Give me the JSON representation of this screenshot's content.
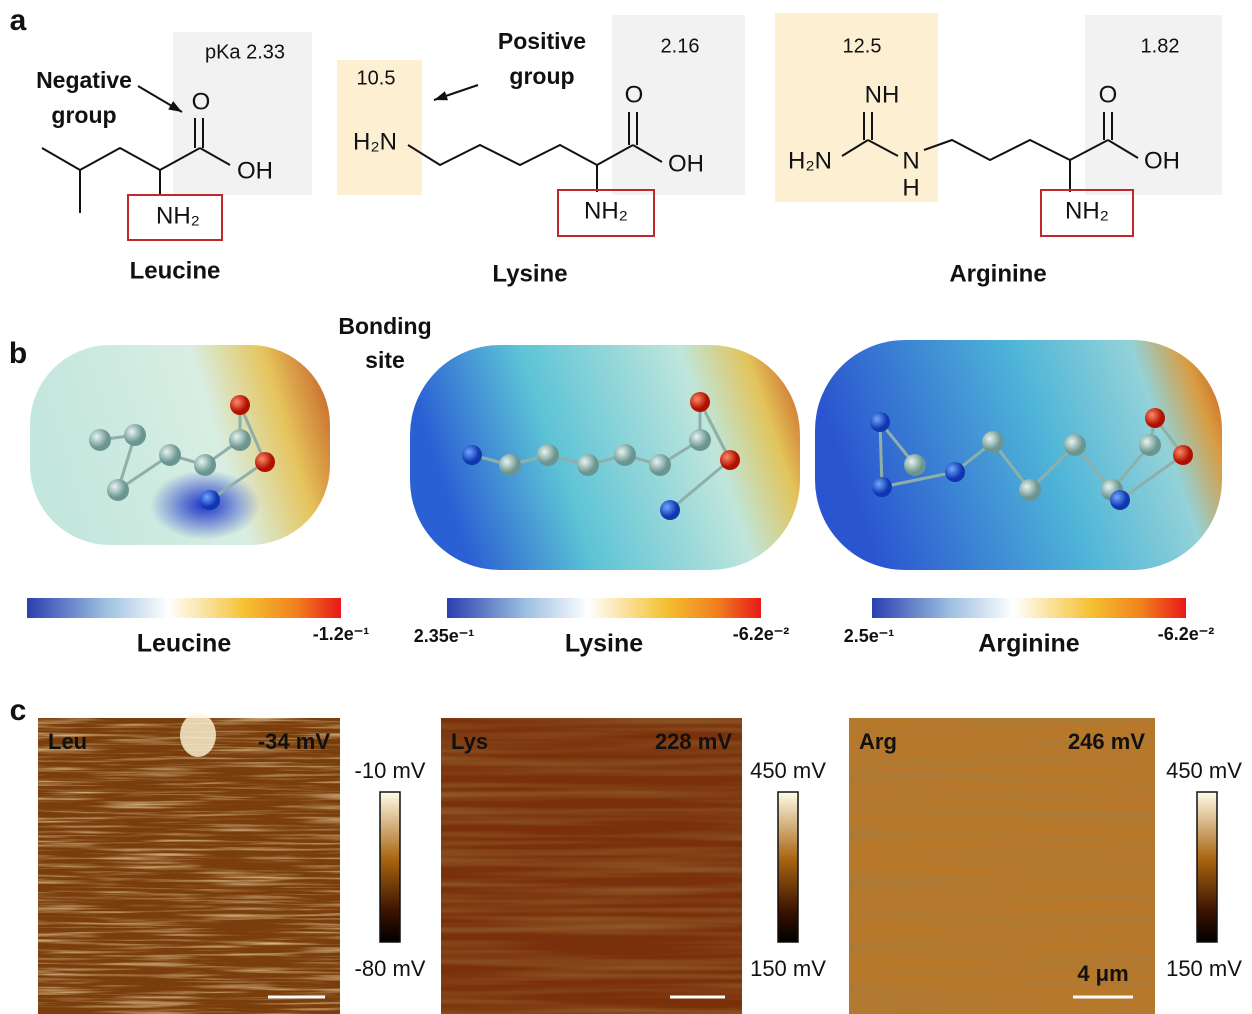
{
  "panel_a": {
    "label": "a",
    "leucine": {
      "name": "Leucine",
      "pka": "pKa 2.33",
      "carbonyl_o": "O",
      "hydroxyl": "OH",
      "amine": "NH₂"
    },
    "lysine": {
      "name": "Lysine",
      "pka_acid": "2.16",
      "pka_side": "10.5",
      "side_amine": "H₂N",
      "carbonyl_o": "O",
      "hydroxyl": "OH",
      "amine": "NH₂"
    },
    "arginine": {
      "name": "Arginine",
      "pka_side": "12.5",
      "pka_acid": "1.82",
      "imine": "NH",
      "side_amine": "H₂N",
      "side_n": "N",
      "side_h": "H",
      "carbonyl_o": "O",
      "hydroxyl": "OH",
      "amine": "NH₂"
    },
    "annotations": {
      "negative": [
        "Negative",
        "group"
      ],
      "positive": [
        "Positive",
        "group"
      ],
      "bonding": [
        "Bonding",
        "site"
      ]
    }
  },
  "panel_b": {
    "label": "b",
    "colorbars": [
      {
        "name": "Leucine",
        "max": "-1.2e⁻¹"
      },
      {
        "name": "Lysine",
        "min": "2.35e⁻¹",
        "max": "-6.2e⁻²"
      },
      {
        "name": "Arginine",
        "min": "2.5e⁻¹",
        "max": "-6.2e⁻²"
      }
    ]
  },
  "panel_c": {
    "label": "c",
    "images": [
      {
        "sample": "Leu",
        "potential": "-34 mV",
        "scale_max": "-10 mV",
        "scale_min": "-80 mV"
      },
      {
        "sample": "Lys",
        "potential": "228 mV",
        "scale_max": "450 mV",
        "scale_min": "150 mV"
      },
      {
        "sample": "Arg",
        "potential": "246 mV",
        "scale_max": "450 mV",
        "scale_min": "150 mV",
        "scale_bar": "4 μm"
      }
    ]
  }
}
